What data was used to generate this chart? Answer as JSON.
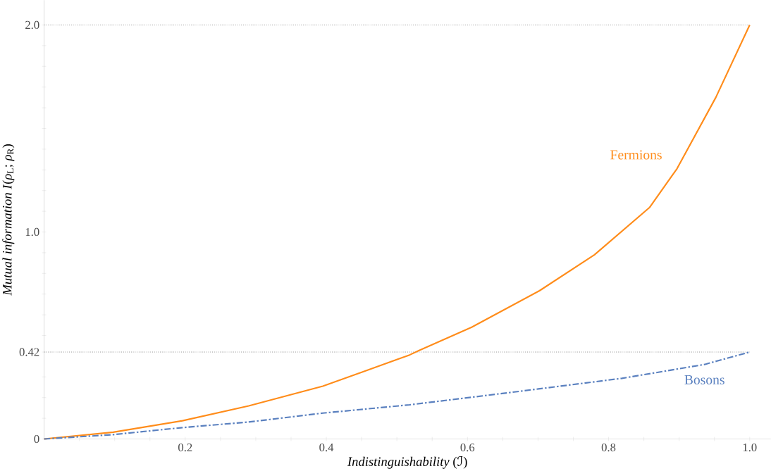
{
  "chart_data": {
    "type": "line",
    "xlabel": "*Indistinguishability* (ℐ)",
    "ylabel": "*Mutual information I*(*ρ*$_{L}$; *ρ*$_{R}$)",
    "xlim": [
      0,
      1.03
    ],
    "ylim": [
      0,
      2.12
    ],
    "xticks": [
      {
        "value": 0.05,
        "label": null
      },
      {
        "value": 0.1,
        "label": null
      },
      {
        "value": 0.15,
        "label": null
      },
      0.2,
      {
        "value": 0.25,
        "label": null
      },
      {
        "value": 0.3,
        "label": null
      },
      {
        "value": 0.35,
        "label": null
      },
      0.4,
      {
        "value": 0.45,
        "label": null
      },
      {
        "value": 0.5,
        "label": null
      },
      {
        "value": 0.55,
        "label": null
      },
      0.6,
      {
        "value": 0.65,
        "label": null
      },
      {
        "value": 0.7,
        "label": null
      },
      {
        "value": 0.75,
        "label": null
      },
      0.8,
      {
        "value": 0.85,
        "label": null
      },
      {
        "value": 0.9,
        "label": null
      },
      {
        "value": 0.95,
        "label": null
      },
      {
        "value": 1.0,
        "label": "1.0"
      }
    ],
    "yticks": [
      0,
      {
        "value": 0.1,
        "label": null
      },
      {
        "value": 0.2,
        "label": null
      },
      {
        "value": 0.3,
        "label": null
      },
      0.42,
      {
        "value": 0.5,
        "label": null
      },
      {
        "value": 0.6,
        "label": null
      },
      {
        "value": 0.7,
        "label": null
      },
      {
        "value": 0.8,
        "label": null
      },
      {
        "value": 0.9,
        "label": null
      },
      {
        "value": 1.0,
        "label": "1.0"
      },
      {
        "value": 1.1,
        "label": null
      },
      {
        "value": 1.2,
        "label": null
      },
      {
        "value": 1.3,
        "label": null
      },
      {
        "value": 1.4,
        "label": null
      },
      {
        "value": 1.5,
        "label": null
      },
      {
        "value": 1.6,
        "label": null
      },
      {
        "value": 1.7,
        "label": null
      },
      {
        "value": 1.8,
        "label": null
      },
      {
        "value": 1.9,
        "label": null
      },
      {
        "value": 2.0,
        "label": "2.0"
      }
    ],
    "ref_lines": [
      {
        "axis": "y",
        "value": 2.0,
        "color": "#555555",
        "line_style": "dotted"
      },
      {
        "axis": "y",
        "value": 0.42,
        "color": "#555555",
        "line_style": "dotted"
      }
    ],
    "series": [
      {
        "name": "Fermions",
        "color": "#ff8c1a",
        "line_style": "solid",
        "x": [
          0,
          0.098,
          0.196,
          0.29,
          0.395,
          0.518,
          0.531,
          0.606,
          0.702,
          0.78,
          0.858,
          0.897,
          0.952,
          1.0
        ],
        "values": [
          0,
          0.033,
          0.088,
          0.16,
          0.255,
          0.406,
          0.427,
          0.54,
          0.716,
          0.89,
          1.118,
          1.306,
          1.65,
          2.0
        ]
      },
      {
        "name": "Bosons",
        "color": "#5a80bf",
        "line_style": "dashdot",
        "x": [
          0,
          0.098,
          0.196,
          0.29,
          0.395,
          0.518,
          0.664,
          0.819,
          0.936,
          1.0
        ],
        "values": [
          0,
          0.021,
          0.055,
          0.082,
          0.125,
          0.165,
          0.226,
          0.293,
          0.36,
          0.42
        ]
      }
    ]
  }
}
